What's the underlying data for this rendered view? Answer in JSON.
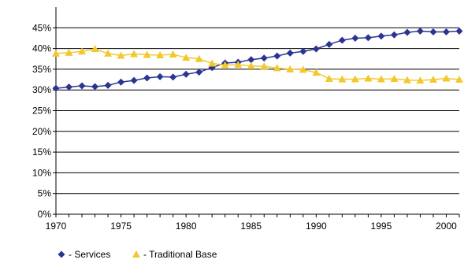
{
  "chart_data": {
    "type": "line",
    "title": "",
    "xlabel": "",
    "ylabel": "",
    "xlim": [
      1970,
      2001
    ],
    "ylim": [
      0,
      50
    ],
    "grid": true,
    "legend_position": "bottom-left",
    "x_ticks": [
      1970,
      1975,
      1980,
      1985,
      1990,
      1995,
      2000
    ],
    "y_ticks": [
      0,
      5,
      10,
      15,
      20,
      25,
      30,
      35,
      40,
      45
    ],
    "y_tick_labels": [
      "0%",
      "5%",
      "10%",
      "15%",
      "20%",
      "25%",
      "30%",
      "35%",
      "40%",
      "45%"
    ],
    "x": [
      1970,
      1971,
      1972,
      1973,
      1974,
      1975,
      1976,
      1977,
      1978,
      1979,
      1980,
      1981,
      1982,
      1983,
      1984,
      1985,
      1986,
      1987,
      1988,
      1989,
      1990,
      1991,
      1992,
      1993,
      1994,
      1995,
      1996,
      1997,
      1998,
      1999,
      2000,
      2001
    ],
    "series": [
      {
        "name": "- Services",
        "color": "#2a3592",
        "marker": "diamond",
        "values": [
          30.4,
          30.7,
          31.0,
          30.8,
          31.1,
          31.9,
          32.3,
          32.9,
          33.2,
          33.1,
          33.8,
          34.3,
          35.4,
          36.5,
          36.7,
          37.3,
          37.7,
          38.2,
          38.9,
          39.3,
          39.9,
          41.0,
          42.0,
          42.5,
          42.6,
          43.0,
          43.3,
          43.9,
          44.2,
          44.0,
          44.0,
          44.2
        ]
      },
      {
        "name": "- Traditional Base",
        "color": "#f2c82e",
        "marker": "triangle",
        "values": [
          38.8,
          39.0,
          39.3,
          39.9,
          38.8,
          38.3,
          38.7,
          38.5,
          38.4,
          38.6,
          37.8,
          37.5,
          36.4,
          36.0,
          36.1,
          35.8,
          35.7,
          35.3,
          35.0,
          34.9,
          34.2,
          32.7,
          32.6,
          32.6,
          32.8,
          32.6,
          32.7,
          32.4,
          32.3,
          32.5,
          32.8,
          32.5
        ]
      }
    ]
  }
}
